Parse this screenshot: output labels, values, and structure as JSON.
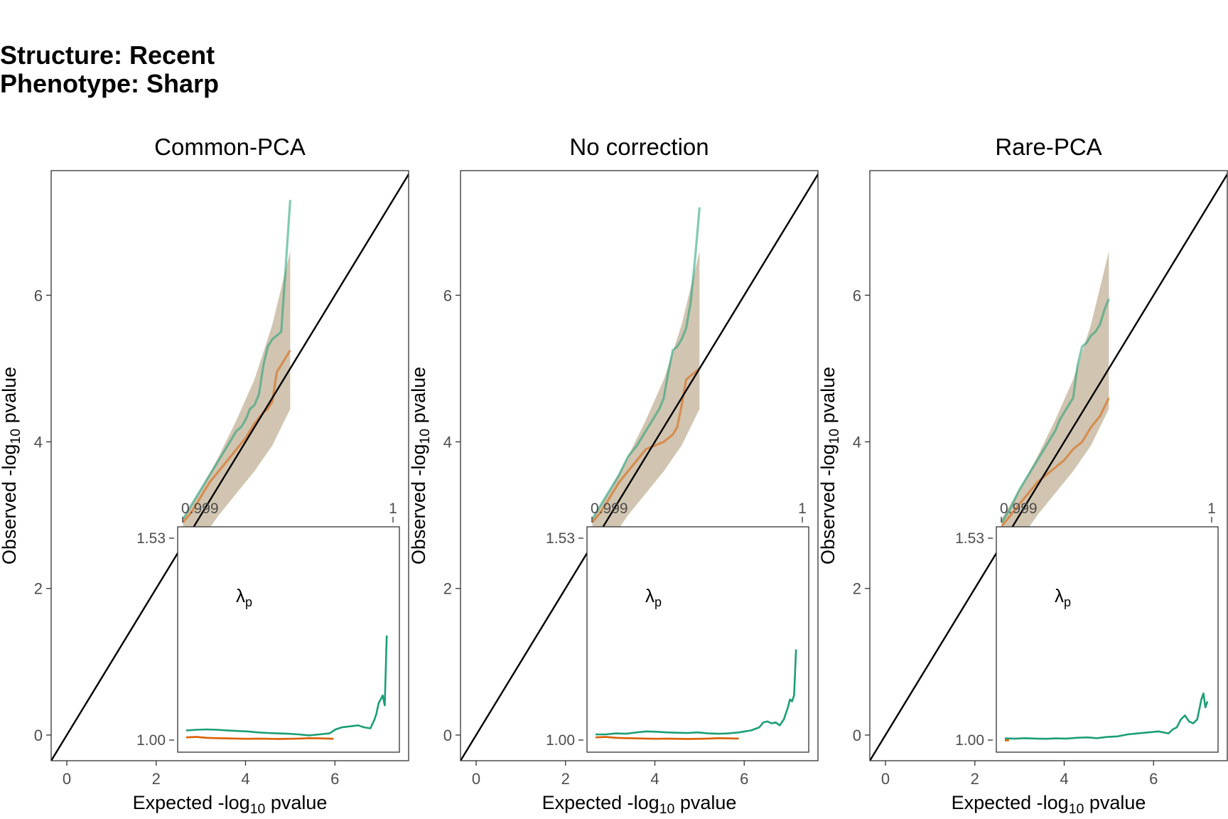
{
  "figure": {
    "title_line1": "Structure: Recent",
    "title_line2": "Phenotype: Sharp"
  },
  "colors": {
    "green": "#1b9e77",
    "orange": "#d95f02",
    "band": "#c9bba3",
    "identity": "#000000"
  },
  "chart_data": [
    {
      "type": "line",
      "title": "Common-PCA",
      "xlabel": "Expected -log10 pvalue",
      "ylabel": "Observed -log10 pvalue",
      "xlim": [
        -0.35,
        7.65
      ],
      "ylim": [
        -0.35,
        7.7
      ],
      "xticks": [
        0,
        2,
        4,
        6
      ],
      "yticks": [
        0,
        2,
        4,
        6
      ],
      "band": {
        "x": [
          2.6,
          3.0,
          3.4,
          3.8,
          4.2,
          4.6,
          5.0
        ],
        "lower": [
          2.3,
          2.65,
          3.0,
          3.3,
          3.6,
          3.95,
          4.45
        ],
        "upper": [
          2.95,
          3.35,
          3.8,
          4.3,
          4.85,
          5.6,
          6.6
        ]
      },
      "series": [
        {
          "color_key": "green",
          "x": [
            2.6,
            2.8,
            3.0,
            3.2,
            3.4,
            3.6,
            3.8,
            3.9,
            4.0,
            4.1,
            4.2,
            4.3,
            4.4,
            4.5,
            4.6,
            4.7,
            4.8,
            4.9,
            5.0
          ],
          "y": [
            2.95,
            3.15,
            3.35,
            3.55,
            3.75,
            3.95,
            4.15,
            4.2,
            4.3,
            4.45,
            4.5,
            4.65,
            5.05,
            5.3,
            5.4,
            5.45,
            5.5,
            6.4,
            7.3
          ]
        },
        {
          "color_key": "orange",
          "x": [
            2.6,
            2.8,
            3.0,
            3.2,
            3.4,
            3.6,
            3.8,
            4.0,
            4.2,
            4.4,
            4.5,
            4.6,
            4.7,
            4.8,
            4.9,
            5.0
          ],
          "y": [
            2.9,
            3.05,
            3.25,
            3.45,
            3.6,
            3.75,
            3.9,
            4.05,
            4.25,
            4.4,
            4.45,
            4.55,
            4.95,
            5.05,
            5.15,
            5.25
          ]
        }
      ],
      "inset": {
        "x_top_labels": [
          "0.999",
          "1"
        ],
        "y_left_labels": [
          "1.00",
          "1.53"
        ],
        "annotation": "λ",
        "annotation_sub": "p",
        "series": [
          {
            "color_key": "green",
            "x": [
              0,
              0.05,
              0.1,
              0.15,
              0.2,
              0.25,
              0.3,
              0.35,
              0.4,
              0.45,
              0.5,
              0.55,
              0.6,
              0.65,
              0.7,
              0.73,
              0.76,
              0.8,
              0.84,
              0.87,
              0.9,
              0.92,
              0.93,
              0.94,
              0.95,
              0.96,
              0.97,
              0.98
            ],
            "y": [
              0.045,
              0.048,
              0.05,
              0.048,
              0.045,
              0.042,
              0.04,
              0.035,
              0.032,
              0.03,
              0.028,
              0.025,
              0.02,
              0.025,
              0.03,
              0.05,
              0.06,
              0.065,
              0.07,
              0.06,
              0.055,
              0.1,
              0.13,
              0.18,
              0.2,
              0.22,
              0.17,
              0.52
            ]
          },
          {
            "color_key": "orange",
            "x": [
              0,
              0.05,
              0.1,
              0.15,
              0.2,
              0.25,
              0.3,
              0.35,
              0.4,
              0.45,
              0.5,
              0.55,
              0.6,
              0.65,
              0.7,
              0.72
            ],
            "y": [
              0.01,
              0.012,
              0.008,
              0.006,
              0.005,
              0.004,
              0.003,
              0.004,
              0.003,
              0.002,
              0.003,
              0.004,
              0.006,
              0.005,
              0.004,
              0.003
            ]
          }
        ]
      }
    },
    {
      "type": "line",
      "title": "No correction",
      "xlabel": "Expected -log10 pvalue",
      "ylabel": "Observed -log10 pvalue",
      "xlim": [
        -0.35,
        7.65
      ],
      "ylim": [
        -0.35,
        7.7
      ],
      "xticks": [
        0,
        2,
        4,
        6
      ],
      "yticks": [
        0,
        2,
        4,
        6
      ],
      "band": {
        "x": [
          2.6,
          3.0,
          3.4,
          3.8,
          4.2,
          4.6,
          5.0
        ],
        "lower": [
          2.3,
          2.65,
          3.0,
          3.3,
          3.6,
          3.95,
          4.45
        ],
        "upper": [
          2.95,
          3.35,
          3.8,
          4.3,
          4.85,
          5.6,
          6.6
        ]
      },
      "series": [
        {
          "color_key": "green",
          "x": [
            2.6,
            2.8,
            3.0,
            3.2,
            3.4,
            3.6,
            3.8,
            4.0,
            4.1,
            4.2,
            4.3,
            4.4,
            4.5,
            4.6,
            4.7,
            4.8,
            4.9,
            5.0
          ],
          "y": [
            2.95,
            3.15,
            3.35,
            3.55,
            3.8,
            3.95,
            4.15,
            4.35,
            4.45,
            4.6,
            4.95,
            5.25,
            5.3,
            5.4,
            5.55,
            5.9,
            6.5,
            7.2
          ]
        },
        {
          "color_key": "orange",
          "x": [
            2.6,
            2.8,
            3.0,
            3.2,
            3.4,
            3.6,
            3.8,
            4.0,
            4.2,
            4.3,
            4.4,
            4.5,
            4.6,
            4.7,
            4.8,
            4.9,
            5.0
          ],
          "y": [
            2.9,
            3.05,
            3.25,
            3.45,
            3.6,
            3.75,
            3.9,
            3.95,
            4.0,
            4.05,
            4.1,
            4.2,
            4.5,
            4.85,
            4.9,
            4.95,
            5.0
          ]
        }
      ],
      "inset": {
        "x_top_labels": [
          "0.999",
          "1"
        ],
        "y_left_labels": [
          "1.00",
          "1.53"
        ],
        "annotation": "λ",
        "annotation_sub": "p",
        "series": [
          {
            "color_key": "green",
            "x": [
              0,
              0.05,
              0.1,
              0.15,
              0.2,
              0.25,
              0.3,
              0.35,
              0.4,
              0.45,
              0.5,
              0.55,
              0.6,
              0.65,
              0.7,
              0.73,
              0.76,
              0.8,
              0.82,
              0.84,
              0.86,
              0.88,
              0.9,
              0.92,
              0.94,
              0.95,
              0.96,
              0.97,
              0.98
            ],
            "y": [
              0.025,
              0.025,
              0.03,
              0.028,
              0.035,
              0.04,
              0.038,
              0.035,
              0.033,
              0.032,
              0.035,
              0.03,
              0.028,
              0.03,
              0.035,
              0.04,
              0.045,
              0.06,
              0.085,
              0.09,
              0.08,
              0.085,
              0.07,
              0.1,
              0.16,
              0.2,
              0.19,
              0.22,
              0.45
            ]
          },
          {
            "color_key": "orange",
            "x": [
              0,
              0.05,
              0.1,
              0.15,
              0.2,
              0.25,
              0.3,
              0.35,
              0.4,
              0.45,
              0.5,
              0.55,
              0.6,
              0.65,
              0.7
            ],
            "y": [
              0.01,
              0.012,
              0.008,
              0.006,
              0.005,
              0.004,
              0.003,
              0.004,
              0.003,
              0.002,
              0.003,
              0.004,
              0.006,
              0.005,
              0.004
            ]
          }
        ]
      }
    },
    {
      "type": "line",
      "title": "Rare-PCA",
      "xlabel": "Expected -log10 pvalue",
      "ylabel": "Observed -log10 pvalue",
      "xlim": [
        -0.35,
        7.65
      ],
      "ylim": [
        -0.35,
        7.7
      ],
      "xticks": [
        0,
        2,
        4,
        6
      ],
      "yticks": [
        0,
        2,
        4,
        6
      ],
      "band": {
        "x": [
          2.6,
          3.0,
          3.4,
          3.8,
          4.2,
          4.6,
          5.0
        ],
        "lower": [
          2.3,
          2.65,
          3.0,
          3.3,
          3.6,
          3.95,
          4.45
        ],
        "upper": [
          2.95,
          3.35,
          3.8,
          4.3,
          4.85,
          5.6,
          6.6
        ]
      },
      "series": [
        {
          "color_key": "green",
          "x": [
            2.6,
            2.8,
            3.0,
            3.2,
            3.4,
            3.6,
            3.8,
            3.9,
            4.0,
            4.1,
            4.2,
            4.3,
            4.4,
            4.5,
            4.6,
            4.7,
            4.8,
            4.9,
            5.0
          ],
          "y": [
            2.9,
            3.1,
            3.35,
            3.55,
            3.75,
            3.95,
            4.15,
            4.3,
            4.4,
            4.5,
            4.6,
            5.05,
            5.3,
            5.35,
            5.45,
            5.5,
            5.6,
            5.8,
            5.95
          ]
        },
        {
          "color_key": "orange",
          "x": [
            2.6,
            2.8,
            3.0,
            3.2,
            3.4,
            3.6,
            3.8,
            4.0,
            4.2,
            4.4,
            4.6,
            4.8,
            5.0
          ],
          "y": [
            2.85,
            3.0,
            3.15,
            3.3,
            3.45,
            3.55,
            3.65,
            3.75,
            3.9,
            4.0,
            4.2,
            4.35,
            4.6
          ]
        }
      ],
      "inset": {
        "x_top_labels": [
          "0.999",
          "1"
        ],
        "y_left_labels": [
          "1.00",
          "1.53"
        ],
        "annotation": "λ",
        "annotation_sub": "p",
        "series": [
          {
            "color_key": "green",
            "x": [
              0,
              0.05,
              0.1,
              0.15,
              0.2,
              0.25,
              0.3,
              0.35,
              0.4,
              0.45,
              0.5,
              0.55,
              0.6,
              0.65,
              0.7,
              0.75,
              0.8,
              0.82,
              0.84,
              0.86,
              0.88,
              0.9,
              0.92,
              0.94,
              0.96,
              0.97,
              0.98,
              0.99
            ],
            "y": [
              0.005,
              0.004,
              0.006,
              0.004,
              0.003,
              0.005,
              0.004,
              0.008,
              0.01,
              0.006,
              0.012,
              0.015,
              0.025,
              0.03,
              0.035,
              0.04,
              0.03,
              0.05,
              0.06,
              0.1,
              0.12,
              0.09,
              0.08,
              0.1,
              0.2,
              0.23,
              0.16,
              0.19
            ]
          },
          {
            "color_key": "orange",
            "x": [
              0,
              0.02
            ],
            "y": [
              -0.005,
              -0.005
            ]
          }
        ]
      }
    }
  ]
}
